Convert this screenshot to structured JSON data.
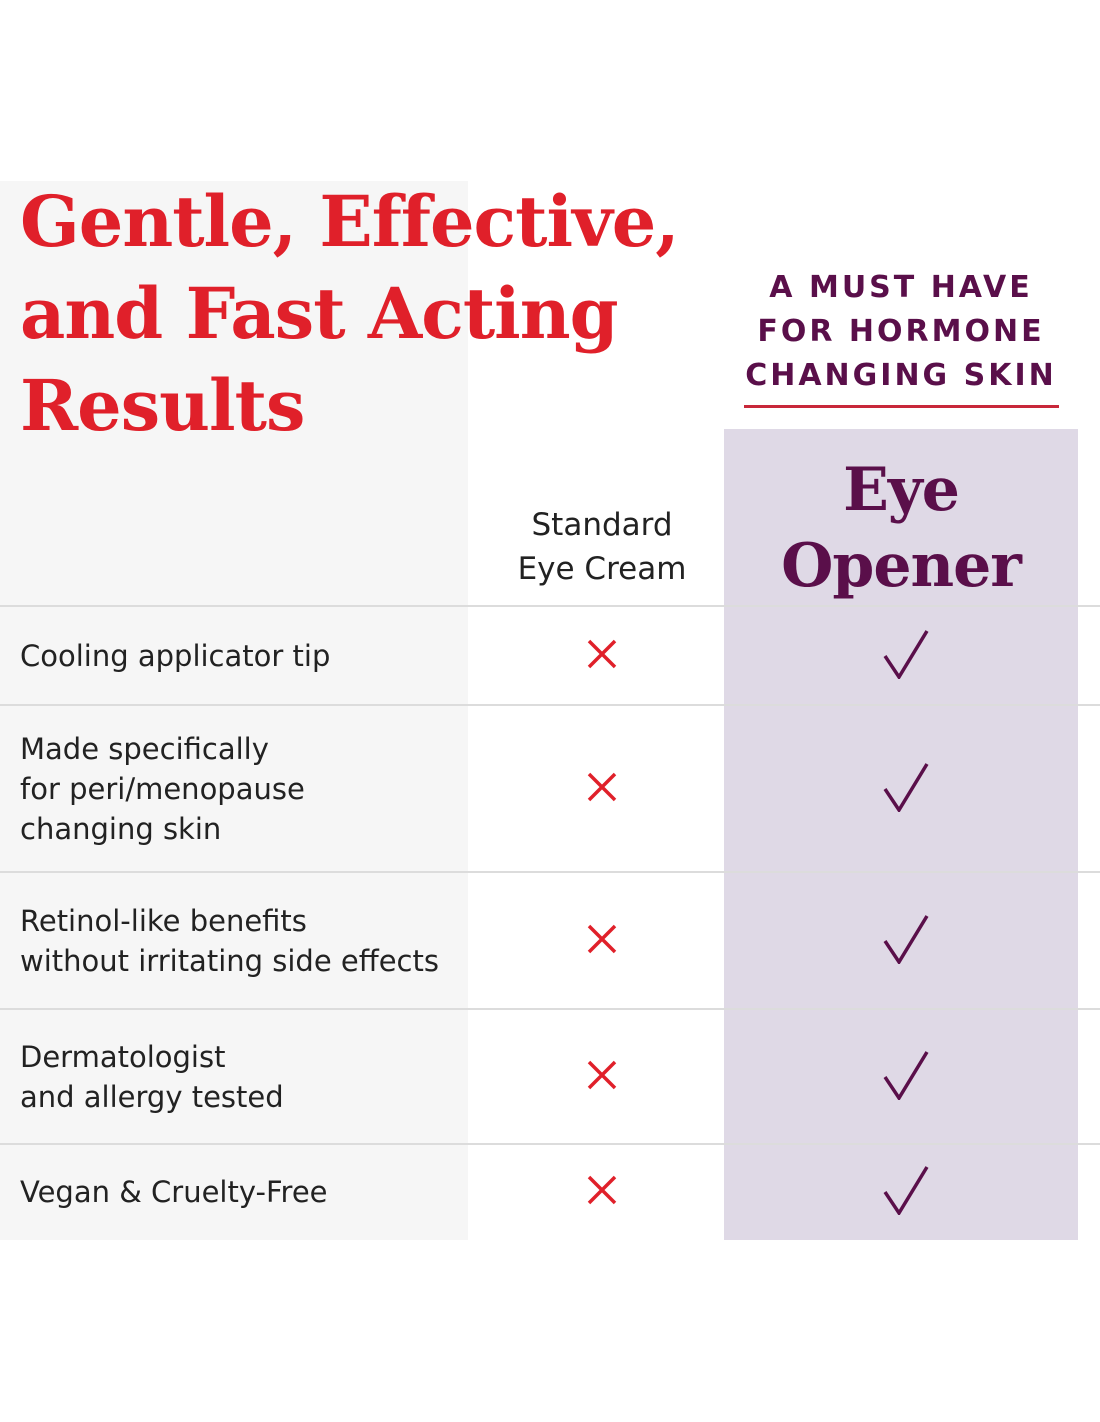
{
  "title": {
    "lines": [
      "Gentle, Effective,",
      "and Fast Acting",
      "Results"
    ]
  },
  "tagline": {
    "lines": [
      "A MUST HAVE",
      "FOR HORMONE",
      "CHANGING SKIN"
    ]
  },
  "columns": {
    "standard": {
      "lines": [
        "Standard",
        "Eye Cream"
      ],
      "icon": "x-icon"
    },
    "product": {
      "lines": [
        "Eye",
        "Opener"
      ],
      "icon": "check-icon"
    }
  },
  "colors": {
    "title_red": "#e0202a",
    "brand_purple": "#5a0f4a",
    "product_column_bg": "#dfd9e6",
    "x_red": "#e0202a"
  },
  "rows": [
    {
      "lines": [
        "Cooling applicator tip"
      ],
      "standard": false,
      "product": true
    },
    {
      "lines": [
        "Made specifically",
        "for peri/menopause",
        "changing skin"
      ],
      "standard": false,
      "product": true
    },
    {
      "lines": [
        "Retinol-like benefits",
        "without irritating side effects"
      ],
      "standard": false,
      "product": true
    },
    {
      "lines": [
        "Dermatologist",
        "and allergy tested"
      ],
      "standard": false,
      "product": true
    },
    {
      "lines": [
        "Vegan & Cruelty-Free"
      ],
      "standard": false,
      "product": true
    }
  ]
}
